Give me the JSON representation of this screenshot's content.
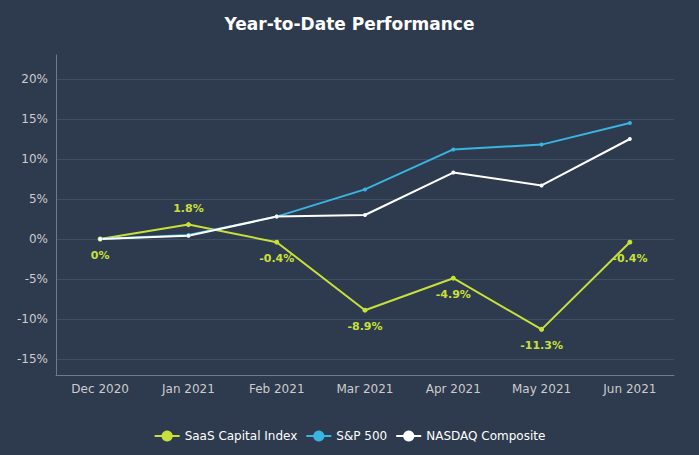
{
  "chart_data": {
    "type": "line",
    "title": "Year-to-Date Performance",
    "categories": [
      "Dec 2020",
      "Jan 2021",
      "Feb 2021",
      "Mar 2021",
      "Apr 2021",
      "May 2021",
      "Jun 2021"
    ],
    "series": [
      {
        "name": "SaaS Capital Index",
        "color": "#c8e03a",
        "values": [
          0.0,
          1.8,
          -0.4,
          -8.9,
          -4.9,
          -11.3,
          -0.4
        ],
        "data_labels": true,
        "value_labels": [
          "0%",
          "1.8%",
          "-0.4%",
          "-8.9%",
          "-4.9%",
          "-11.3%",
          "-0.4%"
        ]
      },
      {
        "name": "S&P 500",
        "color": "#3ab4e0",
        "values": [
          0.0,
          0.5,
          2.8,
          6.2,
          11.2,
          11.8,
          14.5
        ]
      },
      {
        "name": "NASDAQ Composite",
        "color": "#ffffff",
        "values": [
          0.0,
          0.4,
          2.8,
          3.0,
          8.3,
          6.7,
          12.5
        ]
      }
    ],
    "ylim": [
      -17,
      23
    ],
    "yticks": [
      {
        "value": -15,
        "label": "-15%"
      },
      {
        "value": -10,
        "label": "-10%"
      },
      {
        "value": -5,
        "label": "-5%"
      },
      {
        "value": 0,
        "label": "0%"
      },
      {
        "value": 5,
        "label": "5%"
      },
      {
        "value": 10,
        "label": "10%"
      },
      {
        "value": 15,
        "label": "15%"
      },
      {
        "value": 20,
        "label": "20%"
      }
    ],
    "grid": true,
    "legend": "bottom"
  }
}
